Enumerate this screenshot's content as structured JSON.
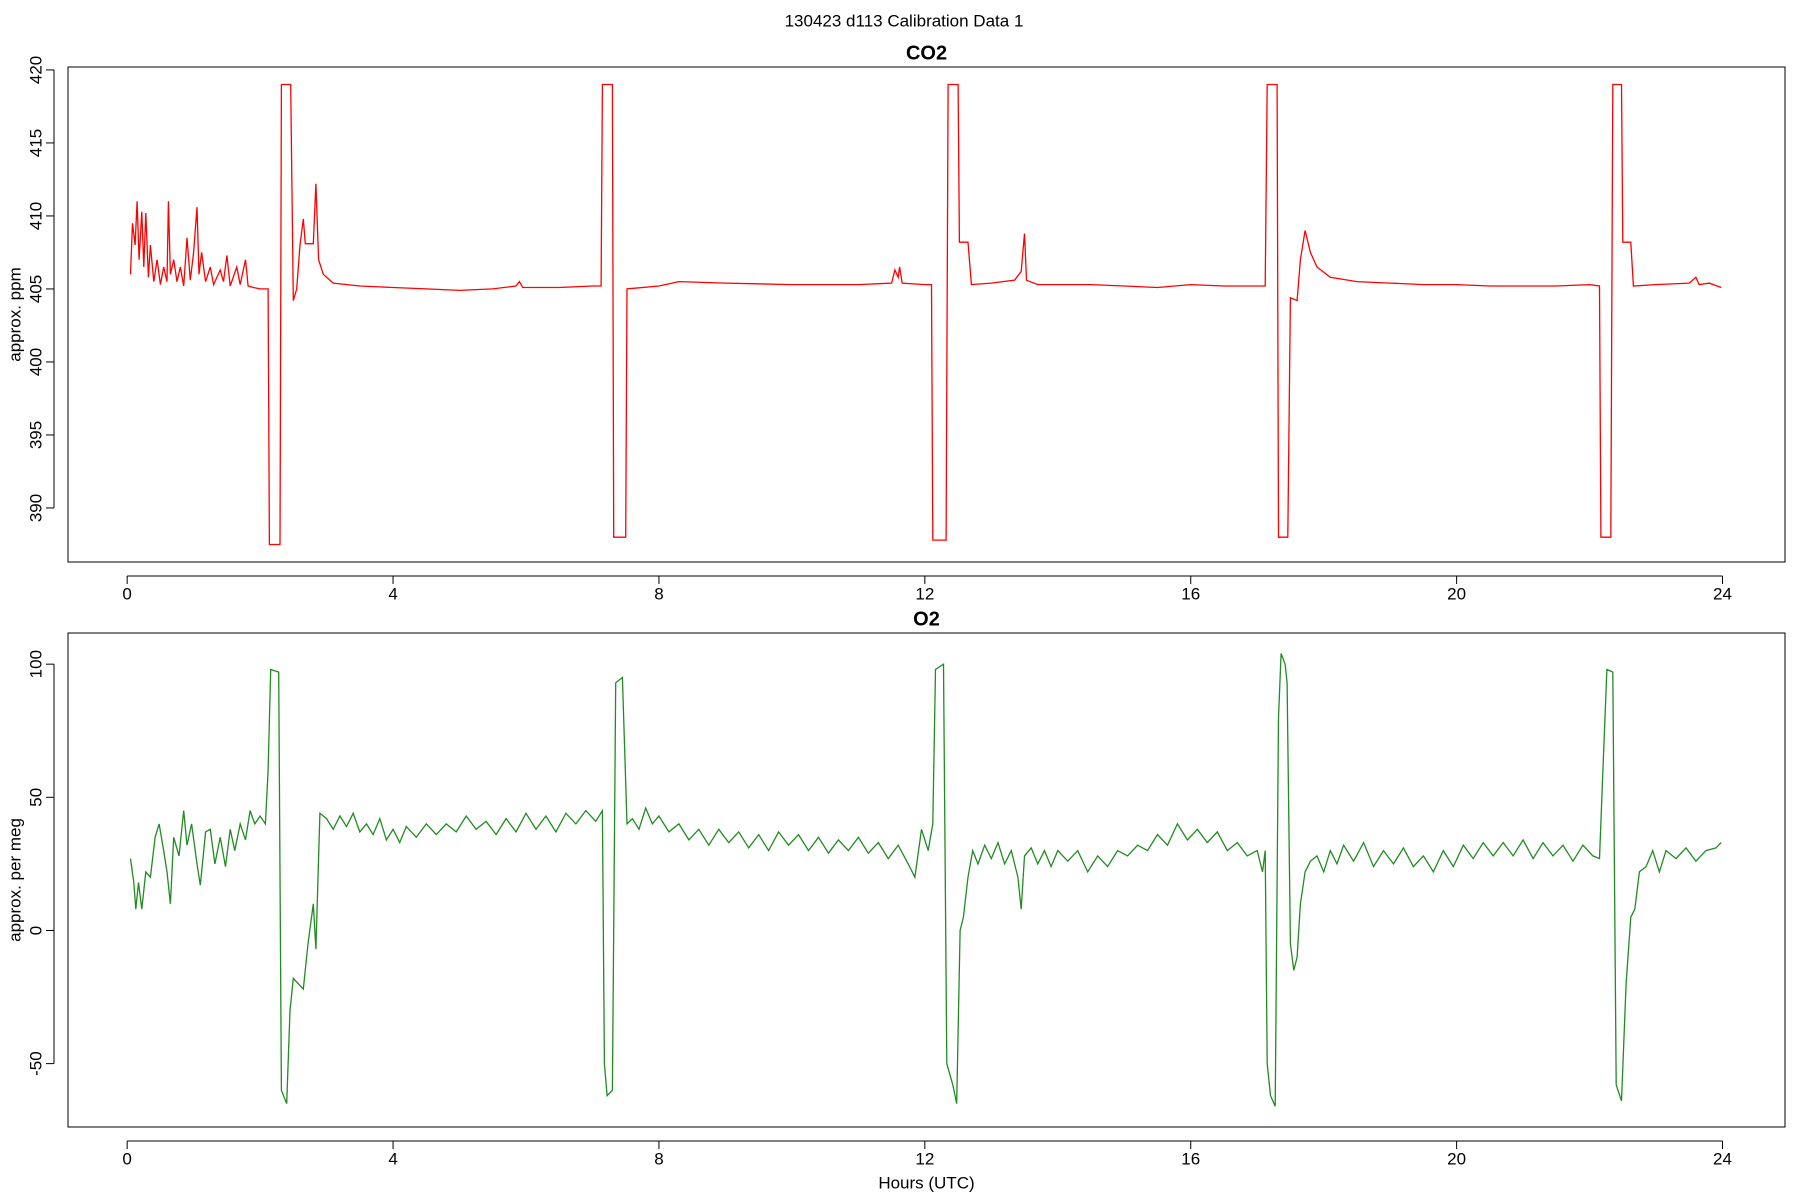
{
  "title": "130423   d113   Calibration Data 1",
  "chart_data": [
    {
      "type": "line",
      "title": "CO2",
      "ylabel": "approx. ppm",
      "color": "#ff0000",
      "xlim": [
        -0.89,
        24.94
      ],
      "xticks": [
        0,
        4,
        8,
        12,
        16,
        20,
        24
      ],
      "ylim": [
        386.3,
        420.2
      ],
      "yticks": [
        390,
        395,
        400,
        405,
        410,
        415,
        420
      ],
      "x": [
        0.05,
        0.08,
        0.12,
        0.15,
        0.18,
        0.22,
        0.25,
        0.28,
        0.32,
        0.35,
        0.4,
        0.45,
        0.5,
        0.55,
        0.6,
        0.62,
        0.65,
        0.7,
        0.75,
        0.8,
        0.85,
        0.9,
        0.95,
        1.0,
        1.05,
        1.08,
        1.12,
        1.18,
        1.25,
        1.3,
        1.4,
        1.45,
        1.5,
        1.55,
        1.65,
        1.7,
        1.78,
        1.82,
        1.9,
        2.0,
        2.12,
        2.14,
        2.3,
        2.32,
        2.46,
        2.5,
        2.55,
        2.6,
        2.65,
        2.68,
        2.8,
        2.84,
        2.88,
        2.95,
        3.1,
        3.5,
        4.0,
        4.5,
        5.0,
        5.5,
        5.85,
        5.9,
        5.95,
        6.5,
        7.0,
        7.13,
        7.15,
        7.3,
        7.32,
        7.5,
        7.52,
        8.0,
        8.3,
        9,
        10,
        11,
        11.5,
        11.55,
        11.6,
        11.62,
        11.66,
        12.0,
        12.1,
        12.12,
        12.32,
        12.35,
        12.5,
        12.52,
        12.65,
        12.7,
        13.0,
        13.35,
        13.45,
        13.5,
        13.53,
        13.7,
        14.5,
        15,
        15.5,
        16,
        16.5,
        17.0,
        17.12,
        17.15,
        17.3,
        17.32,
        17.46,
        17.5,
        17.6,
        17.65,
        17.72,
        17.8,
        17.9,
        18.1,
        18.5,
        19,
        19.5,
        20,
        20.5,
        21,
        21.5,
        22.0,
        22.15,
        22.17,
        22.32,
        22.35,
        22.48,
        22.5,
        22.62,
        22.66,
        23.0,
        23.5,
        23.6,
        23.65,
        23.8,
        23.98
      ],
      "values": [
        406,
        409.5,
        408,
        411,
        407,
        410.3,
        406.5,
        410.2,
        405.8,
        408,
        405.5,
        407,
        405.3,
        406.5,
        405.5,
        411,
        406,
        407,
        405.5,
        406.5,
        405.2,
        408.5,
        405.6,
        407.5,
        410.6,
        406,
        407.5,
        405.5,
        406.5,
        405.3,
        406.3,
        405.5,
        407.3,
        405.2,
        406.5,
        405.3,
        407,
        405.2,
        405.1,
        405.0,
        405.0,
        387.5,
        387.5,
        419,
        419,
        404.2,
        405,
        408,
        409.8,
        408.1,
        408.1,
        412.2,
        407,
        406,
        405.4,
        405.2,
        405.1,
        405,
        404.9,
        405,
        405.2,
        405.5,
        405.1,
        405.1,
        405.2,
        405.2,
        419,
        419,
        388,
        388,
        405,
        405.2,
        405.5,
        405.4,
        405.3,
        405.3,
        405.4,
        406.3,
        405.8,
        406.5,
        405.4,
        405.3,
        405.3,
        387.8,
        387.8,
        419,
        419,
        408.2,
        408.2,
        405.3,
        405.4,
        405.6,
        406.2,
        408.8,
        405.6,
        405.3,
        405.3,
        405.2,
        405.1,
        405.3,
        405.2,
        405.2,
        405.2,
        419,
        419,
        388,
        388,
        404.4,
        404.2,
        407,
        409,
        407.5,
        406.5,
        405.8,
        405.5,
        405.4,
        405.3,
        405.3,
        405.2,
        405.2,
        405.2,
        405.3,
        405.2,
        388,
        388,
        419,
        419,
        408.2,
        408.2,
        405.2,
        405.3,
        405.4,
        405.8,
        405.3,
        405.4,
        405.1
      ]
    },
    {
      "type": "line",
      "title": "O2",
      "ylabel": "approx. per meg",
      "xlabel": "Hours (UTC)",
      "color": "#228b22",
      "xlim": [
        -0.89,
        24.94
      ],
      "xticks": [
        0,
        4,
        8,
        12,
        16,
        20,
        24
      ],
      "ylim": [
        -73.8,
        111.7
      ],
      "yticks": [
        -50,
        0,
        50,
        100
      ],
      "x": [
        0.05,
        0.1,
        0.13,
        0.17,
        0.22,
        0.28,
        0.35,
        0.42,
        0.48,
        0.55,
        0.6,
        0.65,
        0.7,
        0.78,
        0.85,
        0.9,
        0.97,
        1.05,
        1.1,
        1.18,
        1.25,
        1.32,
        1.4,
        1.48,
        1.55,
        1.62,
        1.7,
        1.78,
        1.85,
        1.92,
        2.0,
        2.08,
        2.12,
        2.16,
        2.28,
        2.32,
        2.4,
        2.45,
        2.5,
        2.65,
        2.72,
        2.8,
        2.84,
        2.9,
        3.0,
        3.1,
        3.2,
        3.3,
        3.4,
        3.5,
        3.6,
        3.7,
        3.8,
        3.9,
        4.0,
        4.1,
        4.2,
        4.35,
        4.5,
        4.65,
        4.8,
        4.95,
        5.1,
        5.25,
        5.4,
        5.55,
        5.7,
        5.85,
        6.0,
        6.15,
        6.3,
        6.45,
        6.6,
        6.75,
        6.9,
        7.05,
        7.15,
        7.18,
        7.22,
        7.3,
        7.35,
        7.45,
        7.52,
        7.6,
        7.7,
        7.8,
        7.9,
        8.0,
        8.15,
        8.3,
        8.45,
        8.6,
        8.75,
        8.9,
        9.05,
        9.2,
        9.35,
        9.5,
        9.65,
        9.8,
        9.95,
        10.1,
        10.25,
        10.4,
        10.55,
        10.7,
        10.85,
        11.0,
        11.15,
        11.3,
        11.45,
        11.6,
        11.75,
        11.85,
        11.95,
        12.05,
        12.12,
        12.16,
        12.28,
        12.33,
        12.42,
        12.48,
        12.53,
        12.58,
        12.65,
        12.72,
        12.8,
        12.9,
        13.0,
        13.1,
        13.2,
        13.3,
        13.4,
        13.45,
        13.5,
        13.6,
        13.7,
        13.8,
        13.9,
        14.0,
        14.15,
        14.3,
        14.45,
        14.6,
        14.75,
        14.9,
        15.05,
        15.2,
        15.35,
        15.5,
        15.65,
        15.8,
        15.95,
        16.1,
        16.25,
        16.4,
        16.55,
        16.7,
        16.85,
        17.0,
        17.08,
        17.12,
        17.15,
        17.2,
        17.27,
        17.32,
        17.36,
        17.42,
        17.45,
        17.5,
        17.55,
        17.6,
        17.65,
        17.72,
        17.8,
        17.9,
        18.0,
        18.1,
        18.2,
        18.3,
        18.45,
        18.6,
        18.75,
        18.9,
        19.05,
        19.2,
        19.35,
        19.5,
        19.65,
        19.8,
        19.95,
        20.1,
        20.25,
        20.4,
        20.55,
        20.7,
        20.85,
        21.0,
        21.15,
        21.3,
        21.45,
        21.6,
        21.75,
        21.9,
        22.05,
        22.15,
        22.2,
        22.26,
        22.35,
        22.4,
        22.48,
        22.55,
        22.62,
        22.68,
        22.75,
        22.85,
        22.95,
        23.05,
        23.15,
        23.3,
        23.45,
        23.6,
        23.75,
        23.9,
        23.98
      ],
      "values": [
        27,
        18,
        8,
        18,
        8,
        22,
        20,
        35,
        40,
        30,
        22,
        10,
        35,
        28,
        45,
        32,
        40,
        25,
        17,
        37,
        38,
        25,
        35,
        24,
        38,
        30,
        40,
        34,
        45,
        40,
        43,
        40,
        60,
        98,
        97,
        -60,
        -65,
        -30,
        -18,
        -22,
        -5,
        10,
        -7,
        44,
        42,
        38,
        43,
        39,
        44,
        37,
        40,
        36,
        42,
        34,
        38,
        33,
        39,
        35,
        40,
        36,
        40,
        37,
        43,
        38,
        41,
        36,
        42,
        37,
        44,
        38,
        43,
        37,
        44,
        40,
        45,
        41,
        45,
        -50,
        -62,
        -60,
        93,
        95,
        40,
        42,
        38,
        46,
        40,
        43,
        37,
        40,
        34,
        38,
        32,
        38,
        33,
        37,
        31,
        36,
        30,
        37,
        32,
        36,
        30,
        35,
        29,
        34,
        30,
        35,
        29,
        33,
        27,
        32,
        25,
        20,
        38,
        30,
        40,
        98,
        100,
        -50,
        -58,
        -65,
        0,
        5,
        20,
        30,
        25,
        32,
        27,
        33,
        25,
        30,
        20,
        8,
        28,
        31,
        25,
        30,
        24,
        30,
        26,
        30,
        22,
        28,
        24,
        30,
        28,
        32,
        30,
        36,
        32,
        40,
        34,
        38,
        33,
        37,
        30,
        33,
        28,
        30,
        22,
        30,
        -50,
        -62,
        -66,
        80,
        104,
        100,
        93,
        -5,
        -15,
        -10,
        10,
        22,
        26,
        28,
        22,
        30,
        25,
        32,
        26,
        33,
        24,
        30,
        25,
        31,
        24,
        28,
        22,
        30,
        24,
        32,
        27,
        33,
        28,
        33,
        28,
        34,
        27,
        33,
        28,
        32,
        26,
        32,
        28,
        27,
        60,
        98,
        97,
        -58,
        -64,
        -20,
        5,
        8,
        22,
        24,
        30,
        22,
        30,
        27,
        31,
        26,
        30,
        31,
        33
      ]
    }
  ]
}
